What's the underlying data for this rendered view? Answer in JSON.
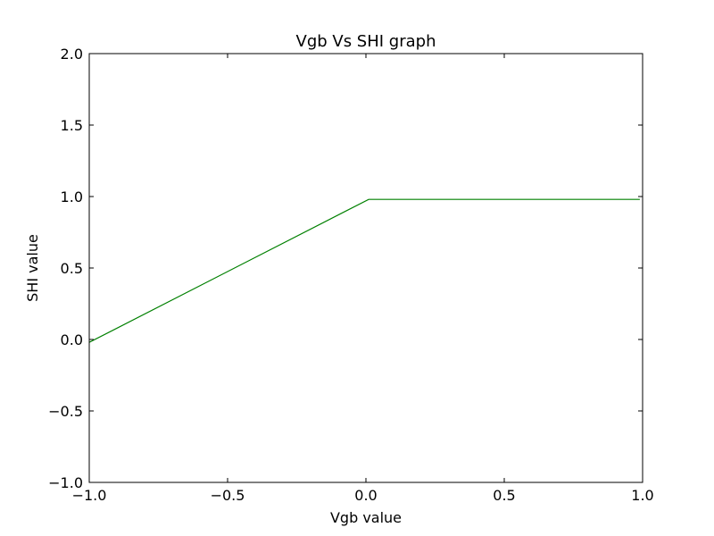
{
  "chart_data": {
    "type": "line",
    "title": "Vgb Vs SHI graph",
    "xlabel": "Vgb value",
    "ylabel": "SHI value",
    "xlim": [
      -1.0,
      1.0
    ],
    "ylim": [
      -1.0,
      2.0
    ],
    "xticks": [
      -1.0,
      -0.5,
      0.0,
      0.5,
      1.0
    ],
    "xtick_labels": [
      "−1.0",
      "−0.5",
      "0.0",
      "0.5",
      "1.0"
    ],
    "yticks": [
      -1.0,
      -0.5,
      0.0,
      0.5,
      1.0,
      1.5,
      2.0
    ],
    "ytick_labels": [
      "−1.0",
      "−0.5",
      "0.0",
      "0.5",
      "1.0",
      "1.5",
      "2.0"
    ],
    "grid": false,
    "series": [
      {
        "color": "#008000",
        "x": [
          -1.0,
          0.01,
          0.99
        ],
        "y": [
          -0.02,
          0.98,
          0.98
        ]
      }
    ]
  }
}
